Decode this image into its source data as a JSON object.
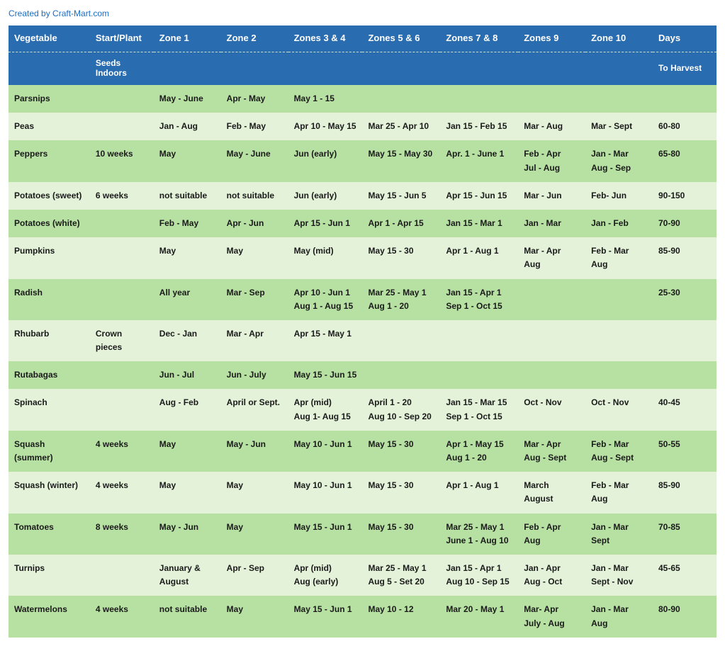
{
  "credit": "Created by Craft-Mart.com",
  "colors": {
    "header_bg": "#2a6cb0",
    "header_fg": "#ffffff",
    "row_odd_bg": "#b7e0a3",
    "row_even_bg": "#e3f2d9",
    "text": "#1a1a1a",
    "credit": "#1a6bc4"
  },
  "typography": {
    "font_family": "Arial, Helvetica, sans-serif",
    "header_fontsize_pt": 10,
    "body_fontsize_pt": 9,
    "weight": "bold"
  },
  "table": {
    "headers_row1": [
      "Vegetable",
      "Start/Plant",
      "Zone 1",
      "Zone 2",
      "Zones 3 & 4",
      "Zones 5 & 6",
      "Zones 7 & 8",
      "Zones 9",
      "Zone 10",
      "Days"
    ],
    "headers_row2": [
      "",
      "Seeds Indoors",
      "",
      "",
      "",
      "",
      "",
      "",
      "",
      "To Harvest"
    ],
    "col_widths_pct": [
      11.5,
      9,
      9.5,
      9.5,
      10.5,
      11,
      11,
      9.5,
      9.5,
      9
    ],
    "rows": [
      {
        "cells": [
          "Parsnips",
          "",
          "May - June",
          "Apr - May",
          "May 1 - 15",
          "",
          "",
          "",
          "",
          ""
        ]
      },
      {
        "cells": [
          "Peas",
          "",
          "Jan - Aug",
          "Feb - May",
          "Apr 10 - May 15",
          "Mar 25 - Apr 10",
          "Jan 15 - Feb 15",
          "Mar - Aug",
          "Mar - Sept",
          "60-80"
        ]
      },
      {
        "cells": [
          "Peppers",
          "10 weeks",
          "May",
          "May - June",
          "Jun (early)",
          "May 15 - May 30",
          "Apr. 1 - June 1",
          "Feb - Apr\nJul - Aug",
          "Jan - Mar\nAug - Sep",
          "65-80"
        ]
      },
      {
        "cells": [
          "Potatoes (sweet)",
          "6 weeks",
          "not suitable",
          "not suitable",
          "Jun (early)",
          "May 15 - Jun 5",
          "Apr 15 - Jun 15",
          "Mar - Jun",
          "Feb- Jun",
          "90-150"
        ]
      },
      {
        "cells": [
          "Potatoes (white)",
          "",
          "Feb - May",
          "Apr - Jun",
          "Apr 15 - Jun 1",
          "Apr 1 - Apr 15",
          "Jan 15 - Mar 1",
          "Jan - Mar",
          "Jan - Feb",
          "70-90"
        ]
      },
      {
        "cells": [
          "Pumpkins",
          "",
          "May",
          "May",
          "May (mid)",
          "May 15 - 30",
          "Apr 1 - Aug 1",
          "Mar - Apr\nAug",
          "Feb - Mar\nAug",
          "85-90"
        ]
      },
      {
        "cells": [
          "Radish",
          "",
          "All year",
          "Mar - Sep",
          "Apr 10 - Jun 1\nAug 1 - Aug 15",
          "Mar 25 - May 1\nAug 1 - 20",
          "Jan 15 - Apr 1\nSep 1 - Oct 15",
          "",
          "",
          "25-30"
        ]
      },
      {
        "cells": [
          "Rhubarb",
          "Crown pieces",
          "Dec - Jan",
          "Mar - Apr",
          "Apr 15 - May 1",
          "",
          "",
          "",
          "",
          ""
        ]
      },
      {
        "cells": [
          "Rutabagas",
          "",
          "Jun - Jul",
          "Jun - July",
          "May 15 - Jun 15",
          "",
          "",
          "",
          "",
          ""
        ]
      },
      {
        "cells": [
          "Spinach",
          "",
          "Aug - Feb",
          "April or Sept.",
          "Apr (mid)\nAug 1- Aug 15",
          "April 1 - 20\nAug 10 - Sep 20",
          "Jan 15 - Mar 15\nSep 1 - Oct 15",
          "Oct - Nov",
          "Oct - Nov",
          "40-45"
        ]
      },
      {
        "cells": [
          "Squash (summer)",
          "4 weeks",
          "May",
          "May - Jun",
          "May 10 - Jun 1",
          "May 15 - 30",
          "Apr 1 - May 15\nAug 1 - 20",
          "Mar - Apr\nAug - Sept",
          "Feb - Mar\nAug - Sept",
          "50-55"
        ]
      },
      {
        "cells": [
          "Squash (winter)",
          "4 weeks",
          "May",
          "May",
          "May 10 - Jun 1",
          "May 15 - 30",
          "Apr 1 - Aug 1",
          "March\nAugust",
          "Feb - Mar\nAug",
          "85-90"
        ]
      },
      {
        "cells": [
          "Tomatoes",
          "8 weeks",
          "May - Jun",
          "May",
          "May 15 - Jun 1",
          "May 15 - 30",
          "Mar 25 - May 1\nJune 1 - Aug 10",
          "Feb - Apr\nAug",
          "Jan - Mar\nSept",
          "70-85"
        ]
      },
      {
        "cells": [
          "Turnips",
          "",
          "January & August",
          "Apr - Sep",
          "Apr (mid)\nAug (early)",
          "Mar 25 - May 1\nAug 5 - Set 20",
          "Jan 15 - Apr 1\nAug 10 - Sep 15",
          "Jan - Apr\nAug - Oct",
          "Jan - Mar\nSept - Nov",
          "45-65"
        ]
      },
      {
        "cells": [
          "Watermelons",
          "4 weeks",
          "not suitable",
          "May",
          "May 15 - Jun 1",
          "May 10 - 12",
          "Mar 20 - May 1",
          "Mar- Apr\nJuly - Aug",
          "Jan - Mar\nAug",
          "80-90"
        ]
      }
    ]
  }
}
